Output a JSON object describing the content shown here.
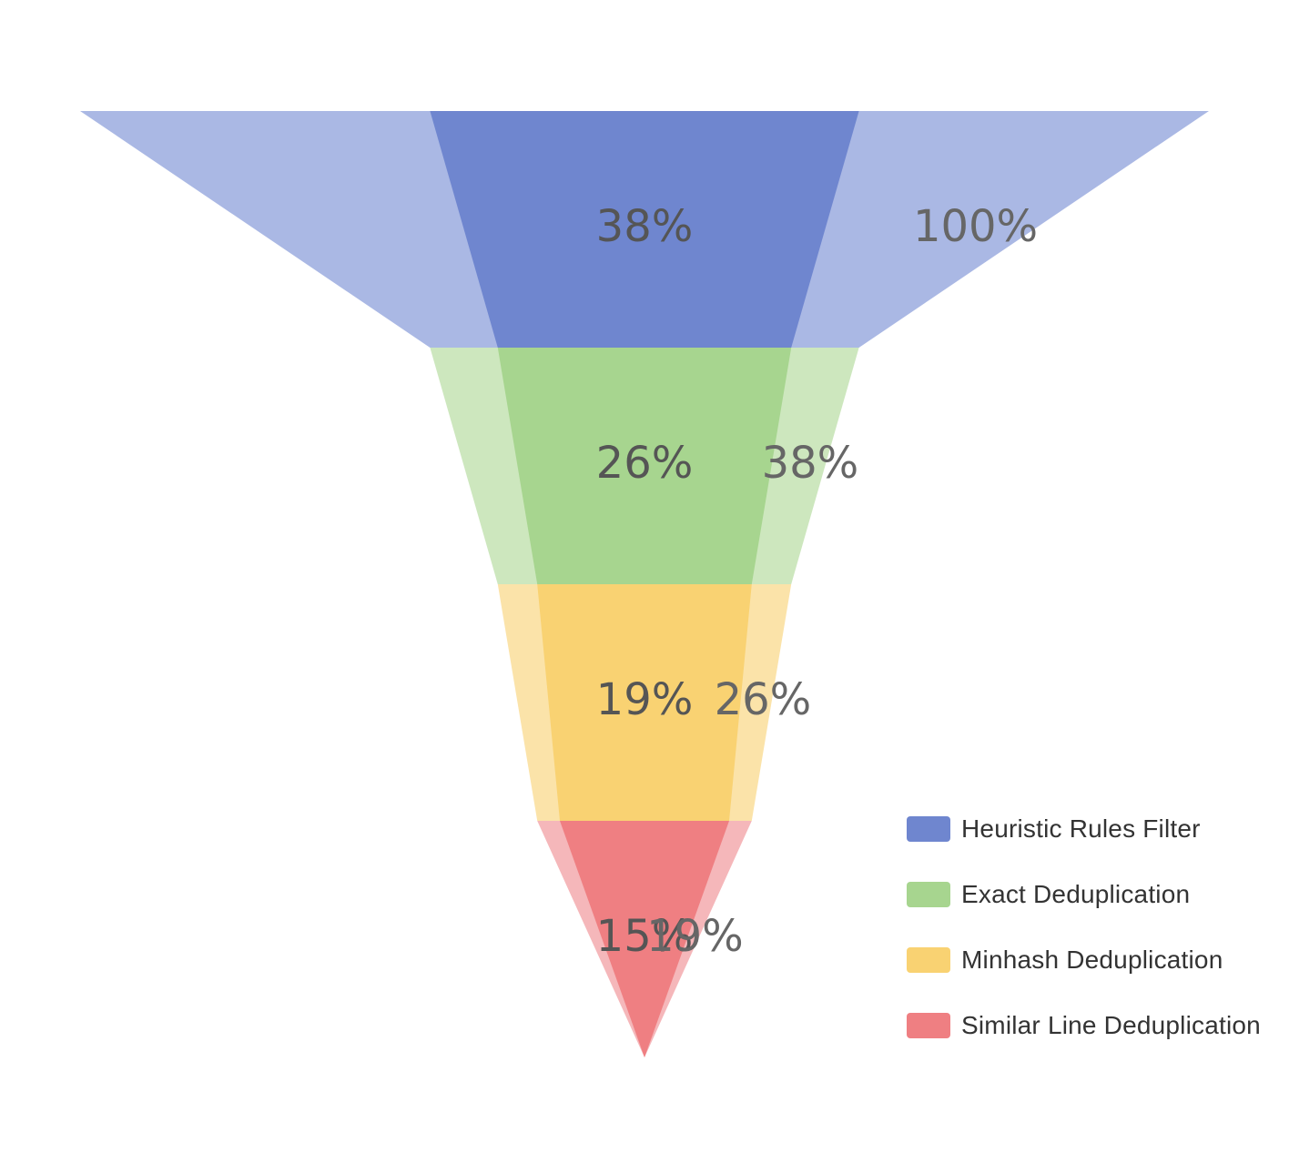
{
  "chart_data": {
    "type": "funnel",
    "title": "",
    "series": [
      {
        "name": "Heuristic Rules Filter",
        "outer_value": 100,
        "inner_value": 38,
        "outer_label": "100%",
        "inner_label": "38%",
        "color_outer": "#AAB8E4",
        "color_inner": "#6F86CF"
      },
      {
        "name": "Exact Deduplication",
        "outer_value": 38,
        "inner_value": 26,
        "outer_label": "38%",
        "inner_label": "26%",
        "color_outer": "#CDE7BE",
        "color_inner": "#A7D58F"
      },
      {
        "name": "Minhash Deduplication",
        "outer_value": 26,
        "inner_value": 19,
        "outer_label": "26%",
        "inner_label": "19%",
        "color_outer": "#FBE3A9",
        "color_inner": "#F9D272"
      },
      {
        "name": "Similar Line Deduplication",
        "outer_value": 19,
        "inner_value": 15,
        "outer_label": "19%",
        "inner_label": "15%",
        "color_outer": "#F5B7BA",
        "color_inner": "#EF7F82"
      }
    ],
    "legend_position": "bottom-right",
    "grid": false
  }
}
